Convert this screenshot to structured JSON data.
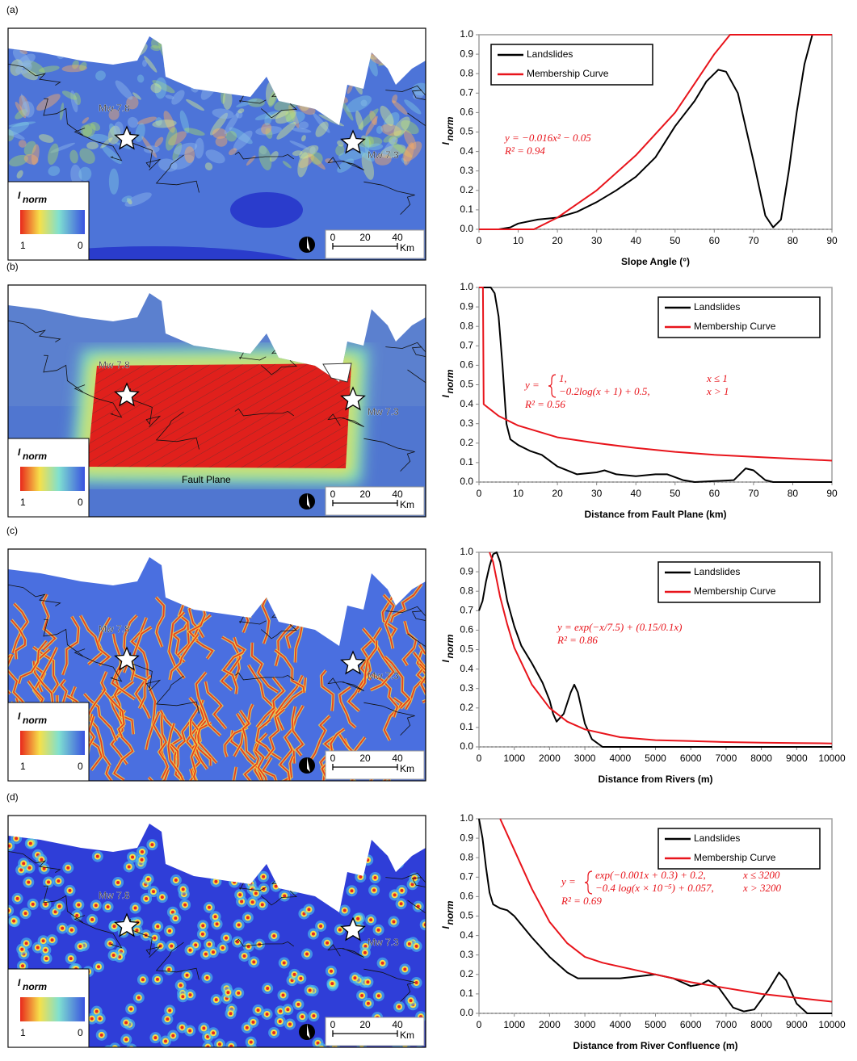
{
  "chart_data": [
    {
      "type": "line",
      "panel": "(a)",
      "xlabel": "Slope Angle (°)",
      "ylabel": "I",
      "ylabel_sub": "norm",
      "xlim": [
        0,
        90
      ],
      "xticks": [
        0,
        10,
        20,
        30,
        40,
        50,
        60,
        70,
        80,
        90
      ],
      "ylim": [
        0,
        1
      ],
      "yticks": [
        {
          "value": 0,
          "label": "0.0"
        },
        0.1,
        0.2,
        0.3,
        0.4,
        0.5,
        0.6,
        0.7,
        0.8,
        0.9,
        {
          "value": 1,
          "label": "1.0"
        }
      ],
      "legend": "upper left",
      "series": [
        {
          "name": "Landslides",
          "color": "#000000",
          "x": [
            0,
            5,
            8,
            10,
            15,
            20,
            25,
            30,
            35,
            40,
            45,
            50,
            55,
            58,
            61,
            63,
            66,
            70,
            73,
            75,
            77,
            79,
            81,
            83,
            85,
            90
          ],
          "values": [
            0,
            0,
            0.01,
            0.03,
            0.05,
            0.06,
            0.09,
            0.14,
            0.2,
            0.27,
            0.37,
            0.53,
            0.66,
            0.76,
            0.82,
            0.81,
            0.7,
            0.35,
            0.07,
            0.01,
            0.05,
            0.3,
            0.6,
            0.85,
            1.0,
            1.0
          ]
        },
        {
          "name": "Membership Curve",
          "color": "#e8141b",
          "x": [
            0,
            14,
            20,
            30,
            40,
            50,
            55,
            60,
            64,
            90
          ],
          "values": [
            0,
            0,
            0.06,
            0.2,
            0.38,
            0.6,
            0.75,
            0.9,
            1.0,
            1.0
          ]
        }
      ],
      "equation": {
        "lines": [
          "y = −0.016x² − 0.05"
        ],
        "r2": "R² = 0.94"
      }
    },
    {
      "type": "line",
      "panel": "(b)",
      "xlabel": "Distance from Fault Plane (km)",
      "ylabel": "I",
      "ylabel_sub": "norm",
      "xlim": [
        0,
        90
      ],
      "xticks": [
        0,
        10,
        20,
        30,
        40,
        50,
        60,
        70,
        80,
        90
      ],
      "ylim": [
        0,
        1
      ],
      "yticks": [
        {
          "value": 0,
          "label": "0.0"
        },
        0.1,
        0.2,
        0.3,
        0.4,
        0.5,
        0.6,
        0.7,
        0.8,
        0.9,
        {
          "value": 1,
          "label": "1.0"
        }
      ],
      "legend": "upper right",
      "series": [
        {
          "name": "Landslides",
          "color": "#000000",
          "x": [
            1,
            3,
            4,
            5,
            6,
            7,
            8,
            10,
            13,
            16,
            20,
            25,
            30,
            32,
            35,
            40,
            45,
            48,
            52,
            55,
            65,
            68,
            70,
            73,
            75,
            90
          ],
          "values": [
            1.0,
            1.0,
            0.97,
            0.85,
            0.6,
            0.3,
            0.22,
            0.19,
            0.16,
            0.14,
            0.08,
            0.04,
            0.05,
            0.06,
            0.04,
            0.03,
            0.04,
            0.04,
            0.01,
            0,
            0.01,
            0.07,
            0.06,
            0.01,
            0,
            0
          ]
        },
        {
          "name": "Membership Curve",
          "color": "#e8141b",
          "x": [
            0,
            1,
            1.2,
            5,
            10,
            20,
            30,
            40,
            50,
            60,
            70,
            80,
            90
          ],
          "values": [
            1.0,
            1.0,
            0.4,
            0.34,
            0.29,
            0.23,
            0.2,
            0.175,
            0.155,
            0.14,
            0.13,
            0.12,
            0.11
          ]
        }
      ],
      "equation": {
        "lhs": "y =",
        "cases": [
          [
            "1,",
            "x ≤ 1"
          ],
          [
            "−0.2log(x + 1) + 0.5,",
            "x > 1"
          ]
        ],
        "r2": "R² = 0.56"
      }
    },
    {
      "type": "line",
      "panel": "(c)",
      "xlabel": "Distance from Rivers (m)",
      "ylabel": "I",
      "ylabel_sub": "norm",
      "xlim": [
        0,
        10000
      ],
      "xticks": [
        0,
        1000,
        2000,
        3000,
        4000,
        5000,
        6000,
        7000,
        8000,
        9000,
        10000
      ],
      "ylim": [
        0,
        1
      ],
      "yticks": [
        {
          "value": 0,
          "label": "0.0"
        },
        0.1,
        0.2,
        0.3,
        0.4,
        0.5,
        0.6,
        0.7,
        0.8,
        0.9,
        {
          "value": 1,
          "label": "1.0"
        }
      ],
      "legend": "upper right",
      "series": [
        {
          "name": "Landslides",
          "color": "#000000",
          "x": [
            0,
            100,
            200,
            300,
            400,
            500,
            600,
            800,
            1000,
            1200,
            1500,
            1800,
            2000,
            2100,
            2200,
            2400,
            2600,
            2700,
            2800,
            3000,
            3200,
            3500,
            10000
          ],
          "values": [
            0.7,
            0.75,
            0.85,
            0.93,
            0.99,
            1.0,
            0.95,
            0.75,
            0.62,
            0.52,
            0.43,
            0.33,
            0.24,
            0.17,
            0.13,
            0.17,
            0.28,
            0.32,
            0.28,
            0.12,
            0.04,
            0,
            0
          ]
        },
        {
          "name": "Membership Curve",
          "color": "#e8141b",
          "x": [
            300,
            400,
            600,
            800,
            1000,
            1500,
            2000,
            2500,
            3000,
            4000,
            5000,
            6000,
            7000,
            8000,
            9000,
            10000
          ],
          "values": [
            1.0,
            0.95,
            0.77,
            0.63,
            0.51,
            0.32,
            0.2,
            0.13,
            0.09,
            0.05,
            0.035,
            0.03,
            0.025,
            0.022,
            0.02,
            0.018
          ]
        }
      ],
      "equation": {
        "lines": [
          "y = exp(−x/7.5) + (0.15/0.1x)"
        ],
        "r2": "R² = 0.86"
      }
    },
    {
      "type": "line",
      "panel": "(d)",
      "xlabel": "Distance from River Confluence (m)",
      "ylabel": "I",
      "ylabel_sub": "norm",
      "xlim": [
        0,
        10000
      ],
      "xticks": [
        0,
        1000,
        2000,
        3000,
        4000,
        5000,
        6000,
        7000,
        8000,
        9000,
        10000
      ],
      "ylim": [
        0,
        1
      ],
      "yticks": [
        {
          "value": 0,
          "label": "0.0"
        },
        0.1,
        0.2,
        0.3,
        0.4,
        0.5,
        0.6,
        0.7,
        0.8,
        0.9,
        {
          "value": 1,
          "label": "1.0"
        }
      ],
      "legend": "upper right",
      "series": [
        {
          "name": "Landslides",
          "color": "#000000",
          "x": [
            0,
            100,
            200,
            300,
            400,
            600,
            800,
            1000,
            1500,
            2000,
            2500,
            2800,
            3000,
            3500,
            4000,
            4500,
            5000,
            5500,
            6000,
            6300,
            6500,
            6800,
            7200,
            7500,
            7800,
            8200,
            8500,
            8700,
            9000,
            9300,
            10000
          ],
          "values": [
            1.0,
            0.9,
            0.75,
            0.62,
            0.56,
            0.54,
            0.53,
            0.5,
            0.39,
            0.29,
            0.21,
            0.18,
            0.18,
            0.18,
            0.18,
            0.19,
            0.2,
            0.18,
            0.14,
            0.15,
            0.17,
            0.13,
            0.03,
            0.01,
            0.02,
            0.12,
            0.21,
            0.17,
            0.05,
            0,
            0
          ]
        },
        {
          "name": "Membership Curve",
          "color": "#e8141b",
          "x": [
            600,
            1000,
            1500,
            2000,
            2500,
            3000,
            3500,
            4000,
            5000,
            6000,
            7000,
            8000,
            9000,
            10000
          ],
          "values": [
            1.0,
            0.84,
            0.64,
            0.47,
            0.36,
            0.29,
            0.26,
            0.24,
            0.2,
            0.16,
            0.13,
            0.1,
            0.08,
            0.06
          ]
        }
      ],
      "equation": {
        "lhs": "y =",
        "cases": [
          [
            "exp(−0.001x + 0.3) + 0.2,",
            "x ≤ 3200"
          ],
          [
            "−0.4 log(x × 10⁻⁵) + 0.057,",
            "x > 3200"
          ]
        ],
        "r2": "R² = 0.69"
      }
    }
  ],
  "maps": [
    {
      "style": "slope",
      "epicenters": [
        "Mw 7.8",
        "Mw 7.3"
      ],
      "legend_title": "I",
      "legend_sub": "norm",
      "legend_ends": [
        "1",
        "0"
      ],
      "scale": [
        "0",
        "20",
        "40"
      ],
      "scale_unit": "Km"
    },
    {
      "style": "fault",
      "epicenters": [
        "Mw 7.8",
        "Mw 7.3"
      ],
      "annotation": "Fault Plane",
      "legend_title": "I",
      "legend_sub": "norm",
      "legend_ends": [
        "1",
        "0"
      ],
      "scale": [
        "0",
        "20",
        "40"
      ],
      "scale_unit": "Km"
    },
    {
      "style": "rivers",
      "epicenters": [
        "Mw 7.8",
        "Mw 7.3"
      ],
      "legend_title": "I",
      "legend_sub": "norm",
      "legend_ends": [
        "1",
        "0"
      ],
      "scale": [
        "0",
        "20",
        "40"
      ],
      "scale_unit": "Km"
    },
    {
      "style": "confluence",
      "epicenters": [
        "Mw 7.8",
        "Mw 7.3"
      ],
      "legend_title": "I",
      "legend_sub": "norm",
      "legend_ends": [
        "1",
        "0"
      ],
      "scale": [
        "0",
        "20",
        "40"
      ],
      "scale_unit": "Km"
    }
  ]
}
